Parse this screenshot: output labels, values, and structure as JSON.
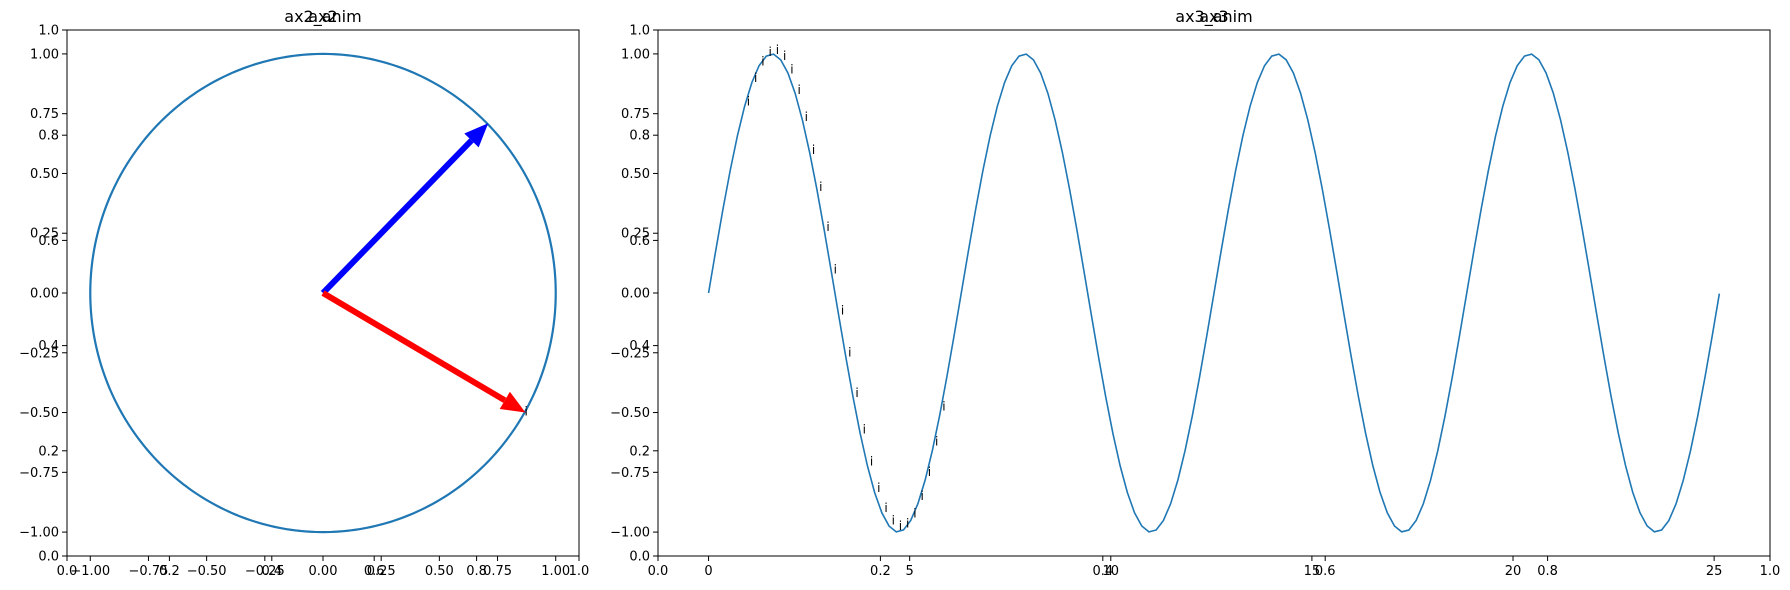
{
  "colors": {
    "line": "#1f77b4",
    "arrow_blue": "#0000ff",
    "arrow_red": "#ff0000",
    "text": "#000000"
  },
  "chart_data": [
    {
      "type": "line",
      "name": "left-panel",
      "titles": [
        "ax2",
        "ax2_anim"
      ],
      "series": [
        {
          "name": "unit-circle",
          "kind": "circle",
          "center": [
            0,
            0
          ],
          "radius": 1.0
        }
      ],
      "arrows": [
        {
          "name": "blue-arrow",
          "color": "#0000ff",
          "from": [
            0,
            0
          ],
          "to": [
            0.71,
            0.71
          ]
        },
        {
          "name": "red-arrow",
          "color": "#ff0000",
          "from": [
            0,
            0
          ],
          "to": [
            0.87,
            -0.5
          ]
        }
      ],
      "annotations": [
        {
          "text": "i",
          "at": [
            0.87,
            -0.5
          ]
        }
      ],
      "overlay_axes": {
        "xlim": [
          0.0,
          1.0
        ],
        "ylim": [
          0.0,
          1.0
        ],
        "xticks": [
          0.0,
          0.2,
          0.4,
          0.6,
          0.8,
          1.0
        ],
        "xtick_labels": [
          "0.0",
          "0.2",
          "0.4",
          "0.6",
          "0.8",
          "1.0"
        ],
        "yticks": [
          0.0,
          0.2,
          0.4,
          0.6,
          0.8,
          1.0
        ],
        "ytick_labels": [
          "0.0",
          "0.2",
          "0.4",
          "0.6",
          "0.8",
          "1.0"
        ]
      },
      "main_axes": {
        "xlim": [
          -1.1,
          1.1
        ],
        "ylim": [
          -1.1,
          1.1
        ],
        "xticks": [
          -1.0,
          -0.75,
          -0.5,
          -0.25,
          0.0,
          0.25,
          0.5,
          0.75,
          1.0
        ],
        "xtick_labels": [
          "−1.00",
          "−0.75",
          "−0.50",
          "−0.25",
          "0.00",
          "0.25",
          "0.50",
          "0.75",
          "1.00"
        ],
        "yticks": [
          -1.0,
          -0.75,
          -0.5,
          -0.25,
          0.0,
          0.25,
          0.5,
          0.75,
          1.0
        ],
        "ytick_labels": [
          "−1.00",
          "−0.75",
          "−0.50",
          "−0.25",
          "0.00",
          "0.25",
          "0.50",
          "0.75",
          "1.00"
        ]
      }
    },
    {
      "type": "line",
      "name": "right-panel",
      "titles": [
        "ax3",
        "ax3_anim"
      ],
      "series": [
        {
          "name": "sine-wave",
          "kind": "sin",
          "x_range": [
            0,
            25.13
          ],
          "frequency": 1.0,
          "amplitude": 1.0
        }
      ],
      "annotations": {
        "text": "i",
        "x": [
          0.9,
          1.08,
          1.26,
          1.44,
          1.62,
          1.8,
          1.98,
          2.16,
          2.34,
          2.52,
          2.7,
          2.88,
          3.06,
          3.24,
          3.42,
          3.6,
          3.78,
          3.96,
          4.14,
          4.32,
          4.5,
          4.68,
          4.86,
          5.04,
          5.22,
          5.4,
          5.58,
          5.76
        ]
      },
      "overlay_axes": {
        "xlim": [
          0.0,
          1.0
        ],
        "ylim": [
          0.0,
          1.0
        ],
        "xticks": [
          0.0,
          0.2,
          0.4,
          0.6,
          0.8,
          1.0
        ],
        "xtick_labels": [
          "0.0",
          "0.2",
          "0.4",
          "0.6",
          "0.8",
          "1.0"
        ],
        "yticks": [
          0.0,
          0.2,
          0.4,
          0.6,
          0.8,
          1.0
        ],
        "ytick_labels": [
          "0.0",
          "0.2",
          "0.4",
          "0.6",
          "0.8",
          "1.0"
        ]
      },
      "main_axes": {
        "xlim": [
          -1.257,
          26.389
        ],
        "ylim": [
          -1.1,
          1.1
        ],
        "xticks": [
          0,
          5,
          10,
          15,
          20,
          25
        ],
        "xtick_labels": [
          "0",
          "5",
          "10",
          "15",
          "20",
          "25"
        ],
        "yticks": [
          -1.0,
          -0.75,
          -0.5,
          -0.25,
          0.0,
          0.25,
          0.5,
          0.75,
          1.0
        ],
        "ytick_labels": [
          "−1.00",
          "−0.75",
          "−0.50",
          "−0.25",
          "0.00",
          "0.25",
          "0.50",
          "0.75",
          "1.00"
        ]
      }
    }
  ]
}
